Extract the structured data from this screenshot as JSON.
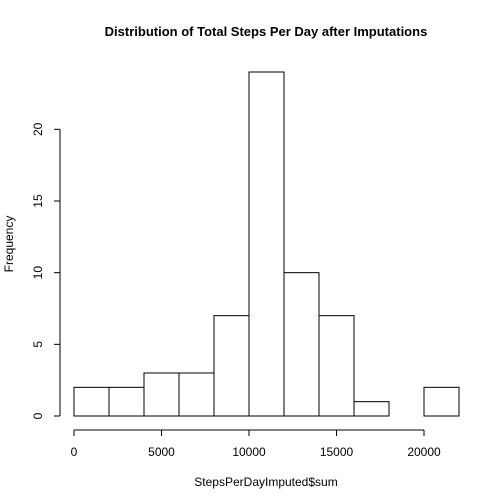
{
  "chart_data": {
    "type": "bar",
    "title": "Distribution of Total Steps Per Day after Imputations",
    "xlabel": "StepsPerDayImputed$sum",
    "ylabel": "Frequency",
    "bins": [
      {
        "from": 0,
        "to": 2000,
        "count": 2
      },
      {
        "from": 2000,
        "to": 4000,
        "count": 2
      },
      {
        "from": 4000,
        "to": 6000,
        "count": 3
      },
      {
        "from": 6000,
        "to": 8000,
        "count": 3
      },
      {
        "from": 8000,
        "to": 10000,
        "count": 7
      },
      {
        "from": 10000,
        "to": 12000,
        "count": 24
      },
      {
        "from": 12000,
        "to": 14000,
        "count": 10
      },
      {
        "from": 14000,
        "to": 16000,
        "count": 7
      },
      {
        "from": 16000,
        "to": 18000,
        "count": 1
      },
      {
        "from": 18000,
        "to": 20000,
        "count": 0
      },
      {
        "from": 20000,
        "to": 22000,
        "count": 2
      }
    ],
    "xlim": [
      0,
      22000
    ],
    "ylim": [
      0,
      24
    ],
    "x_ticks": [
      0,
      5000,
      10000,
      15000,
      20000
    ],
    "y_ticks": [
      0,
      5,
      10,
      15,
      20
    ],
    "grid": false,
    "colors": {
      "bar_fill": "#ffffff",
      "bar_stroke": "#000000"
    }
  }
}
